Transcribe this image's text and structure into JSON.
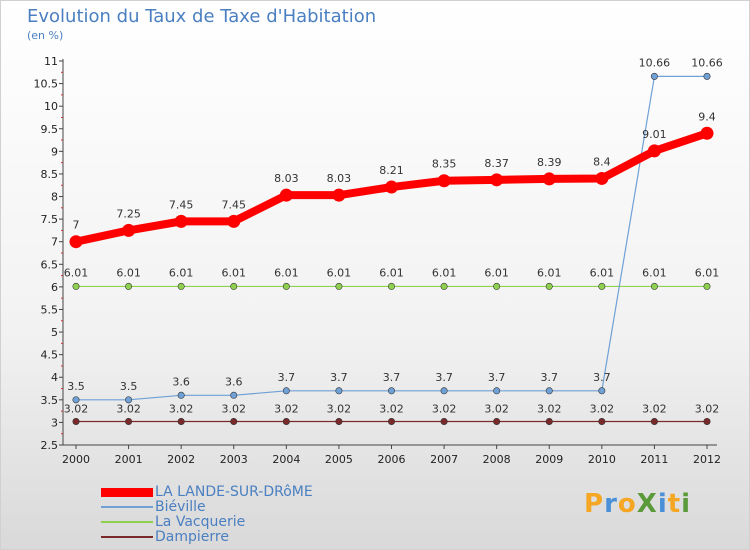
{
  "header": {
    "title": "Evolution du Taux de Taxe d'Habitation",
    "subtitle": "(en %)"
  },
  "chart_data": {
    "type": "line",
    "title": "Evolution du Taux de Taxe d'Habitation",
    "ylabel": "(en %)",
    "xlabel": "",
    "x": [
      "2000",
      "2001",
      "2002",
      "2003",
      "2004",
      "2005",
      "2006",
      "2007",
      "2008",
      "2009",
      "2010",
      "2011",
      "2012"
    ],
    "ylim": [
      2.5,
      11
    ],
    "yticks": [
      "2.5",
      "3",
      "3.5",
      "4",
      "4.5",
      "5",
      "5.5",
      "6",
      "6.5",
      "7",
      "7.5",
      "8",
      "8.5",
      "9",
      "9.5",
      "10",
      "10.5",
      "11"
    ],
    "grid": false,
    "legend_position": "bottom-left",
    "series": [
      {
        "name": "LA LANDE-SUR-DRôME",
        "color": "#ff0000",
        "values": [
          7,
          7.25,
          7.45,
          7.45,
          8.03,
          8.03,
          8.21,
          8.35,
          8.37,
          8.39,
          8.4,
          9.01,
          9.4
        ],
        "labels": [
          "7",
          "7.25",
          "7.45",
          "7.45",
          "8.03",
          "8.03",
          "8.21",
          "8.35",
          "8.37",
          "8.39",
          "8.4",
          "9.01",
          "9.4"
        ]
      },
      {
        "name": "Biéville",
        "color": "#6fa0d6",
        "values": [
          3.5,
          3.5,
          3.6,
          3.6,
          3.7,
          3.7,
          3.7,
          3.7,
          3.7,
          3.7,
          3.7,
          10.66,
          10.66
        ],
        "labels": [
          "3.5",
          "3.5",
          "3.6",
          "3.6",
          "3.7",
          "3.7",
          "3.7",
          "3.7",
          "3.7",
          "3.7",
          "3.7",
          "10.66",
          "10.66"
        ]
      },
      {
        "name": "La Vacquerie",
        "color": "#8fd14f",
        "values": [
          6.01,
          6.01,
          6.01,
          6.01,
          6.01,
          6.01,
          6.01,
          6.01,
          6.01,
          6.01,
          6.01,
          6.01,
          6.01
        ],
        "labels": [
          "6.01",
          "6.01",
          "6.01",
          "6.01",
          "6.01",
          "6.01",
          "6.01",
          "6.01",
          "6.01",
          "6.01",
          "6.01",
          "6.01",
          "6.01"
        ]
      },
      {
        "name": "Dampierre",
        "color": "#7a2a2a",
        "values": [
          3.02,
          3.02,
          3.02,
          3.02,
          3.02,
          3.02,
          3.02,
          3.02,
          3.02,
          3.02,
          3.02,
          3.02,
          3.02
        ],
        "labels": [
          "3.02",
          "3.02",
          "3.02",
          "3.02",
          "3.02",
          "3.02",
          "3.02",
          "3.02",
          "3.02",
          "3.02",
          "3.02",
          "3.02",
          "3.02"
        ]
      }
    ]
  },
  "logo": {
    "text": "ProXiti",
    "letters": [
      {
        "ch": "P",
        "color": "#f5a623"
      },
      {
        "ch": "r",
        "color": "#4a90d9"
      },
      {
        "ch": "o",
        "color": "#f5a623"
      },
      {
        "ch": "X",
        "color": "#5a9a3a"
      },
      {
        "ch": "i",
        "color": "#4a90d9"
      },
      {
        "ch": "t",
        "color": "#f5a623"
      },
      {
        "ch": "i",
        "color": "#5a9a3a"
      }
    ]
  }
}
